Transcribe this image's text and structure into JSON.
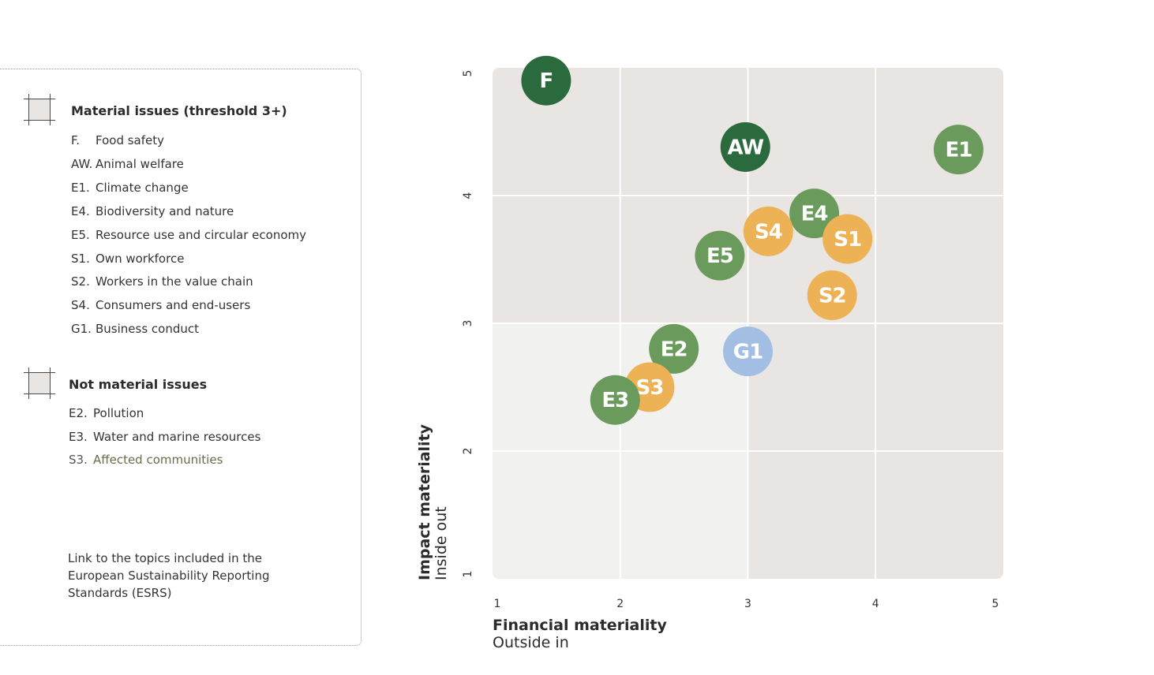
{
  "legend": {
    "material": {
      "title": "Material issues (threshold 3+)",
      "items": [
        {
          "code": "F.",
          "label": "Food safety"
        },
        {
          "code": "AW.",
          "label": "Animal welfare"
        },
        {
          "code": "E1.",
          "label": "Climate change"
        },
        {
          "code": "E4.",
          "label": "Biodiversity and nature"
        },
        {
          "code": "E5.",
          "label": "Resource use and circular economy"
        },
        {
          "code": "S1.",
          "label": "Own workforce"
        },
        {
          "code": "S2.",
          "label": "Workers in the value chain"
        },
        {
          "code": "S4.",
          "label": "Consumers and end-users"
        },
        {
          "code": "G1.",
          "label": "Business conduct"
        }
      ]
    },
    "not_material": {
      "title": "Not material issues",
      "items": [
        {
          "code": "E2.",
          "label": "Pollution"
        },
        {
          "code": "E3.",
          "label": "Water and marine resources"
        },
        {
          "code": "S3.",
          "label": "Affected communities"
        }
      ]
    },
    "footnote": "Link to the topics included in the European Sustainability Reporting Standards (ESRS)"
  },
  "colors": {
    "dark_green": "#2a6a3c",
    "green": "#6a9a5c",
    "orange": "#edb256",
    "blue": "#a2bfe3",
    "quadrant_dark": "#e8e5e2",
    "quadrant_light": "#f1f1f0"
  },
  "chart_data": {
    "type": "scatter",
    "title": "",
    "xlabel": "Financial materiality",
    "xlabel_sub": "Outside in",
    "ylabel": "Impact materiality",
    "ylabel_sub": "Inside out",
    "xlim": [
      1,
      5
    ],
    "ylim": [
      1,
      5
    ],
    "xticks": [
      "1",
      "2",
      "3",
      "4",
      "5"
    ],
    "yticks": [
      "1",
      "2",
      "3",
      "4",
      "5"
    ],
    "threshold": 3,
    "grid": true,
    "points": [
      {
        "label": "F",
        "x": 1.42,
        "y": 4.9,
        "color": "dark_green"
      },
      {
        "label": "AW",
        "x": 2.98,
        "y": 4.38,
        "color": "dark_green"
      },
      {
        "label": "E1",
        "x": 4.65,
        "y": 4.36,
        "color": "green"
      },
      {
        "label": "E4",
        "x": 3.52,
        "y": 3.86,
        "color": "green"
      },
      {
        "label": "S4",
        "x": 3.16,
        "y": 3.72,
        "color": "orange"
      },
      {
        "label": "S1",
        "x": 3.78,
        "y": 3.66,
        "color": "orange"
      },
      {
        "label": "E5",
        "x": 2.78,
        "y": 3.53,
        "color": "green"
      },
      {
        "label": "S2",
        "x": 3.66,
        "y": 3.22,
        "color": "orange"
      },
      {
        "label": "G1",
        "x": 3.0,
        "y": 2.78,
        "color": "blue"
      },
      {
        "label": "E2",
        "x": 2.42,
        "y": 2.8,
        "color": "green"
      },
      {
        "label": "S3",
        "x": 2.23,
        "y": 2.5,
        "color": "orange"
      },
      {
        "label": "E3",
        "x": 1.96,
        "y": 2.4,
        "color": "green"
      }
    ]
  }
}
